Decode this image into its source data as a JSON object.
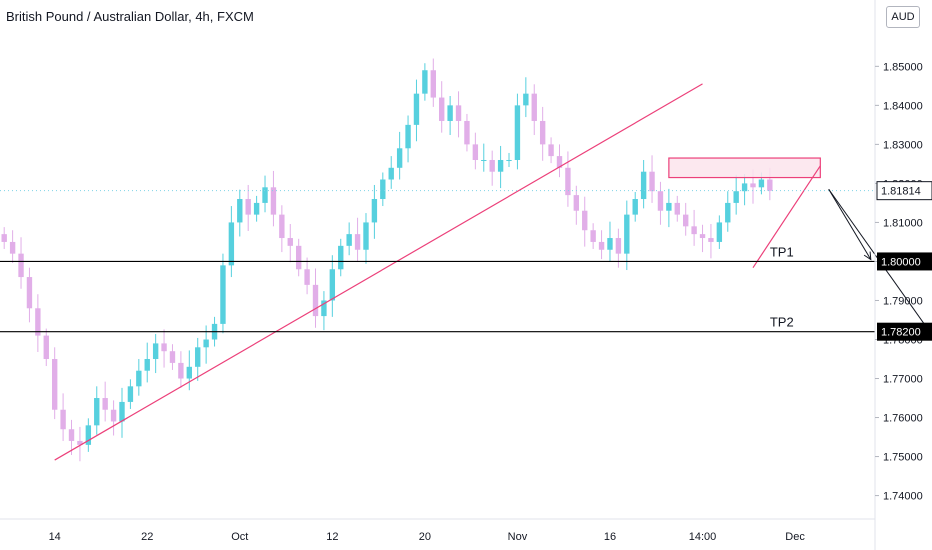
{
  "header": {
    "title": "British Pound / Australian Dollar, 4h, FXCM",
    "currency": "AUD"
  },
  "chart_data": {
    "type": "candlestick",
    "title": "British Pound / Australian Dollar, 4h, FXCM",
    "ylim": [
      1.734,
      1.867
    ],
    "y_ticks": [
      "1.74000",
      "1.75000",
      "1.76000",
      "1.77000",
      "1.78000",
      "1.79000",
      "1.80000",
      "1.81000",
      "1.82000",
      "1.83000",
      "1.84000",
      "1.85000"
    ],
    "x_ticks": [
      {
        "label": "14",
        "i": 6
      },
      {
        "label": "22",
        "i": 17
      },
      {
        "label": "Oct",
        "i": 28
      },
      {
        "label": "12",
        "i": 39
      },
      {
        "label": "20",
        "i": 50
      },
      {
        "label": "Nov",
        "i": 61
      },
      {
        "label": "16",
        "i": 72
      },
      {
        "label": "14:00",
        "i": 83
      },
      {
        "label": "Dec",
        "i": 94
      }
    ],
    "n_slots": 104,
    "closes": [
      1.805,
      1.802,
      1.796,
      1.788,
      1.781,
      1.775,
      1.762,
      1.757,
      1.754,
      1.753,
      1.758,
      1.765,
      1.762,
      1.759,
      1.764,
      1.768,
      1.772,
      1.775,
      1.779,
      1.777,
      1.774,
      1.77,
      1.773,
      1.778,
      1.78,
      1.784,
      1.799,
      1.81,
      1.816,
      1.812,
      1.815,
      1.819,
      1.812,
      1.806,
      1.804,
      1.798,
      1.794,
      1.786,
      1.79,
      1.798,
      1.804,
      1.807,
      1.803,
      1.81,
      1.816,
      1.821,
      1.824,
      1.829,
      1.835,
      1.843,
      1.849,
      1.842,
      1.836,
      1.84,
      1.836,
      1.83,
      1.826,
      1.826,
      1.823,
      1.826,
      1.826,
      1.84,
      1.843,
      1.836,
      1.83,
      1.827,
      1.824,
      1.817,
      1.813,
      1.808,
      1.805,
      1.803,
      1.806,
      1.802,
      1.812,
      1.816,
      1.823,
      1.818,
      1.813,
      1.815,
      1.812,
      1.809,
      1.807,
      1.806,
      1.805,
      1.81,
      1.815,
      1.818,
      1.82,
      1.819,
      1.821,
      1.8181
    ],
    "horizontal_levels": [
      {
        "price": 1.8,
        "label": "TP1",
        "tag": "1.80000"
      },
      {
        "price": 1.782,
        "label": "TP2",
        "tag": "1.78200"
      }
    ],
    "last_price": {
      "price": 1.81814,
      "tag": "1.81814"
    },
    "trendlines": [
      {
        "from": [
          1.7491,
          6
        ],
        "to": [
          1.8455,
          83
        ]
      },
      {
        "from": [
          1.7984,
          89
        ],
        "to": [
          1.8245,
          97
        ]
      }
    ],
    "resistance_zone": {
      "from": 79,
      "to": 97,
      "top": 1.8265,
      "bottom": 1.8215
    },
    "arrows": [
      {
        "from": [
          1.8185,
          98
        ],
        "to": [
          1.8005,
          103
        ]
      },
      {
        "from": [
          1.8185,
          98
        ],
        "to": [
          1.782,
          110
        ]
      }
    ],
    "colors": {
      "up": "#56d0de",
      "down": "#e1aee8",
      "trendline": "#ec407a",
      "zone_fill": "#fce4ec",
      "zone_border": "#ec407a",
      "level_line": "#000000",
      "last_price_line": "#7fd3e6",
      "last_price_tag": "#000000"
    },
    "grid": false
  }
}
